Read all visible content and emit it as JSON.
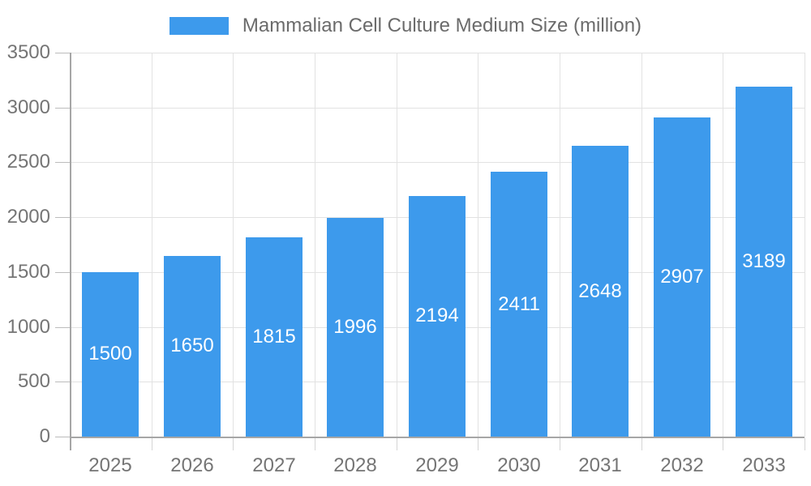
{
  "chart_data": {
    "type": "bar",
    "legend": "Mammalian Cell Culture Medium Size (million)",
    "categories": [
      "2025",
      "2026",
      "2027",
      "2028",
      "2029",
      "2030",
      "2031",
      "2032",
      "2033"
    ],
    "values": [
      1500,
      1650,
      1815,
      1996,
      2194,
      2411,
      2648,
      2907,
      3189
    ],
    "value_labels": [
      "1500",
      "1650",
      "1815",
      "1996",
      "2194",
      "2411",
      "2648",
      "2907",
      "3189"
    ],
    "yticks": [
      0,
      500,
      1000,
      1500,
      2000,
      2500,
      3000,
      3500
    ],
    "ytick_labels": [
      "0",
      "500",
      "1000",
      "1500",
      "2000",
      "2500",
      "3000",
      "3500"
    ],
    "ylim": [
      0,
      3500
    ],
    "grid": true,
    "legend_position": "top",
    "bar_color": "#3d9aec",
    "bar_label_color": "#ffffff",
    "axis_label_color": "#757575",
    "gridline_color": "#e2e2e2",
    "axis_line_color": "#a6a6a6"
  }
}
